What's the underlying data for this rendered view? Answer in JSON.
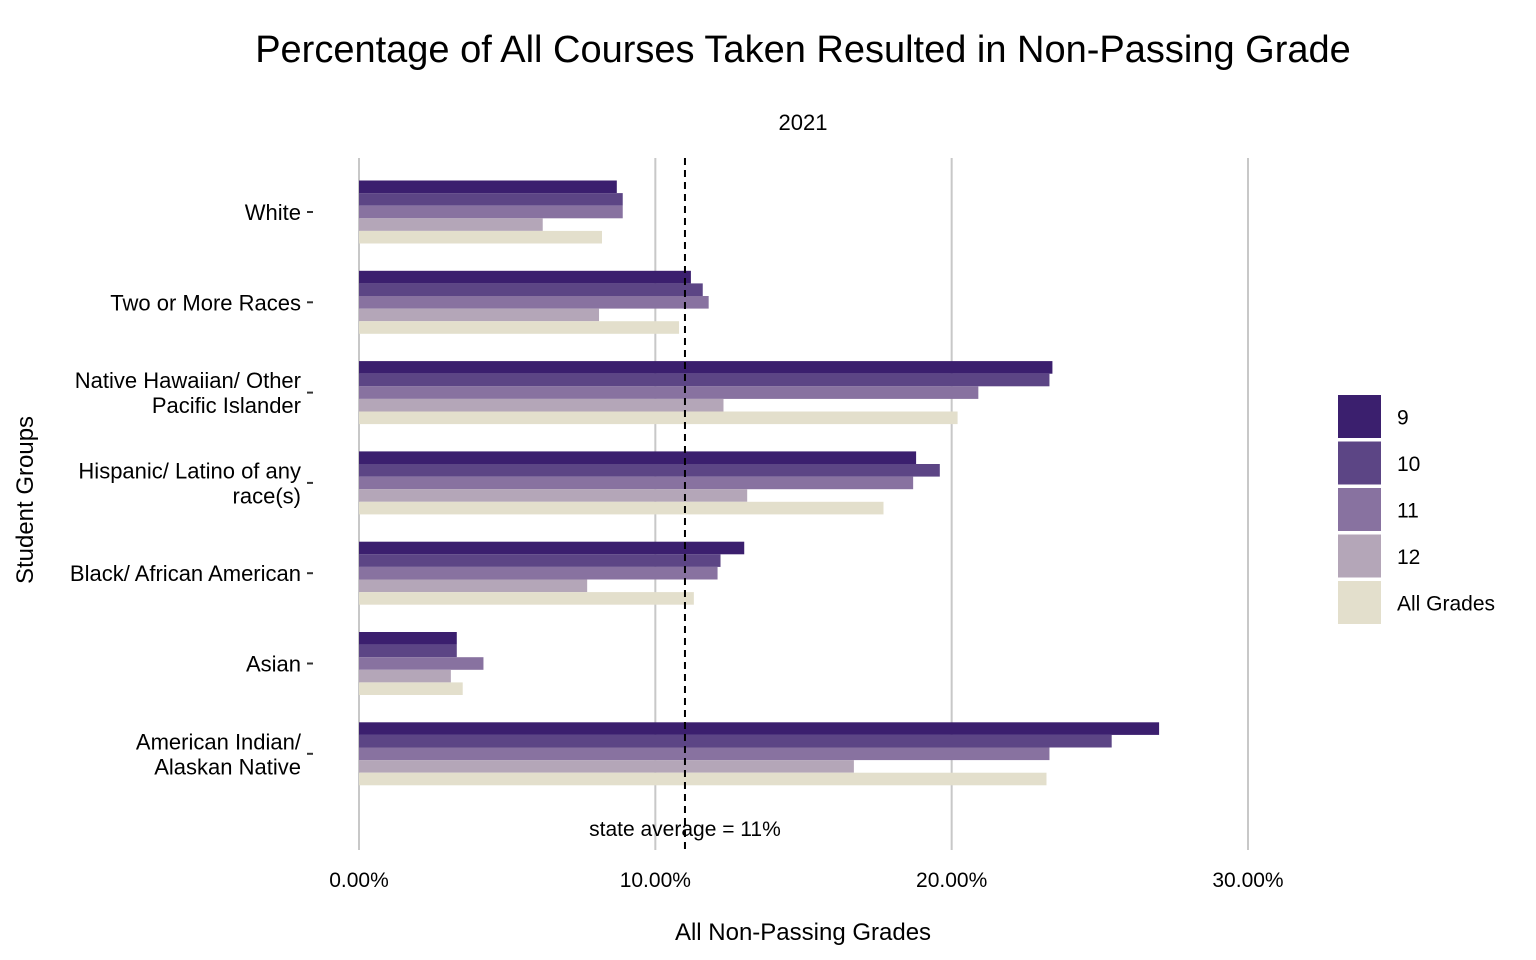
{
  "chart_data": {
    "type": "bar",
    "orientation": "horizontal",
    "title": "Percentage of All Courses Taken Resulted in Non-Passing Grade",
    "subtitle": "2021",
    "xlabel": "All Non-Passing Grades",
    "ylabel": "Student Groups",
    "xlim": [
      0,
      30
    ],
    "x_ticks": [
      0,
      10,
      20,
      30
    ],
    "x_tick_labels": [
      "0.00%",
      "10.00%",
      "20.00%",
      "30.00%"
    ],
    "grid": "vertical major",
    "legend_position": "right",
    "categories": [
      "White",
      "Two or More Races",
      "Native Hawaiian/ Other\nPacific Islander",
      "Hispanic/ Latino of any\nrace(s)",
      "Black/ African American",
      "Asian",
      "American Indian/\nAlaskan Native"
    ],
    "series": [
      {
        "name": "9",
        "color": "#3b1f6e",
        "values": [
          8.7,
          11.2,
          23.4,
          18.8,
          13.0,
          3.3,
          27.0
        ]
      },
      {
        "name": "10",
        "color": "#5c4585",
        "values": [
          8.9,
          11.6,
          23.3,
          19.6,
          12.2,
          3.3,
          25.4
        ]
      },
      {
        "name": "11",
        "color": "#8872a0",
        "values": [
          8.9,
          11.8,
          20.9,
          18.7,
          12.1,
          4.2,
          23.3
        ]
      },
      {
        "name": "12",
        "color": "#b4a6b8",
        "values": [
          6.2,
          8.1,
          12.3,
          13.1,
          7.7,
          3.1,
          16.7
        ]
      },
      {
        "name": "All Grades",
        "color": "#e3dfcc",
        "values": [
          8.2,
          10.8,
          20.2,
          17.7,
          11.3,
          3.5,
          23.2
        ]
      }
    ],
    "reference_line": {
      "value": 11,
      "label": "state average = 11%",
      "style": "dashed"
    }
  }
}
